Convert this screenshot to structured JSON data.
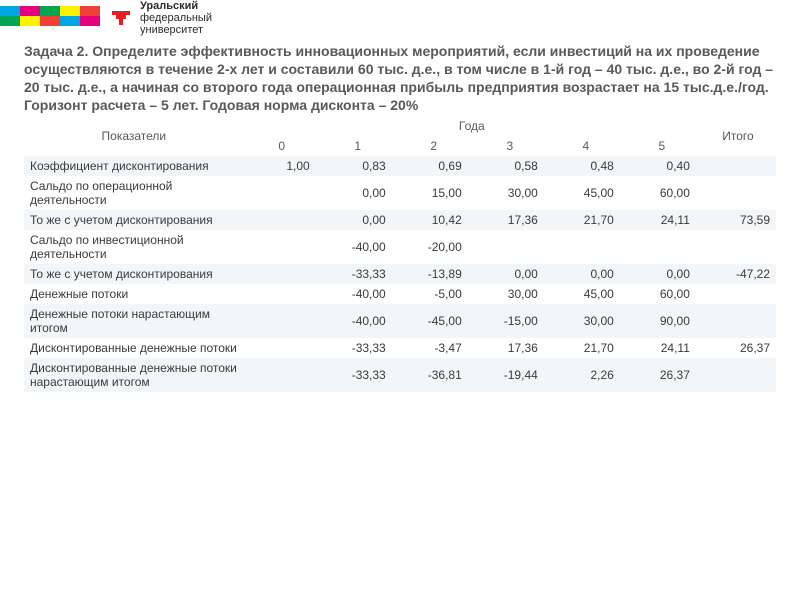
{
  "logo": {
    "line1": "Уральский",
    "line2": "федеральный",
    "line3": "университет",
    "stripe_colors": [
      [
        "#00a6e2",
        "#e6007e",
        "#00a651",
        "#fff200",
        "#ef4136"
      ],
      [
        "#00a651",
        "#fff200",
        "#ef4136",
        "#00a6e2",
        "#e6007e"
      ]
    ],
    "icon_color": "#e31e24"
  },
  "task_text": "Задача 2. Определите эффективность инновационных мероприятий, если инвестиций на их проведение осуществляются в течение 2-х лет и составили 60 тыс. д.е., в том числе в 1-й год – 40 тыс. д.е., во 2-й год – 20 тыс. д.е., а начиная со второго года операционная прибыль предприятия возрастает на 15 тыс.д.е./год. Горизонт расчета – 5 лет. Годовая норма дисконта – 20%",
  "table": {
    "header_indicator": "Показатели",
    "header_years": "Года",
    "header_total": "Итого",
    "year_labels": [
      "0",
      "1",
      "2",
      "3",
      "4",
      "5"
    ],
    "rows": [
      {
        "label": "Коэффициент дисконтирования",
        "values": [
          "1,00",
          "0,83",
          "0,69",
          "0,58",
          "0,48",
          "0,40"
        ],
        "total": ""
      },
      {
        "label": "Сальдо по операционной деятельности",
        "values": [
          "",
          "0,00",
          "15,00",
          "30,00",
          "45,00",
          "60,00"
        ],
        "total": ""
      },
      {
        "label": "То же с учетом дисконтирования",
        "values": [
          "",
          "0,00",
          "10,42",
          "17,36",
          "21,70",
          "24,11"
        ],
        "total": "73,59"
      },
      {
        "label": "Сальдо по инвестиционной деятельности",
        "values": [
          "",
          "-40,00",
          "-20,00",
          "",
          "",
          ""
        ],
        "total": ""
      },
      {
        "label": "То же с учетом дисконтирования",
        "values": [
          "",
          "-33,33",
          "-13,89",
          "0,00",
          "0,00",
          "0,00"
        ],
        "total": "-47,22"
      },
      {
        "label": "Денежные потоки",
        "values": [
          "",
          "-40,00",
          "-5,00",
          "30,00",
          "45,00",
          "60,00"
        ],
        "total": ""
      },
      {
        "label": "Денежные потоки нарастающим итогом",
        "values": [
          "",
          "-40,00",
          "-45,00",
          "-15,00",
          "30,00",
          "90,00"
        ],
        "total": ""
      },
      {
        "label": "Дисконтированные денежные потоки",
        "values": [
          "",
          "-33,33",
          "-3,47",
          "17,36",
          "21,70",
          "24,11"
        ],
        "total": "26,37"
      },
      {
        "label": "Дисконтированные денежные потоки нарастающим итогом",
        "values": [
          "",
          "-33,33",
          "-36,81",
          "-19,44",
          "2,26",
          "26,37"
        ],
        "total": ""
      }
    ],
    "style": {
      "row_bg_odd": "#f3f6f8",
      "row_bg_even": "#ffffff",
      "font_size_pt": 9,
      "text_color": "#3a3a3a"
    }
  }
}
